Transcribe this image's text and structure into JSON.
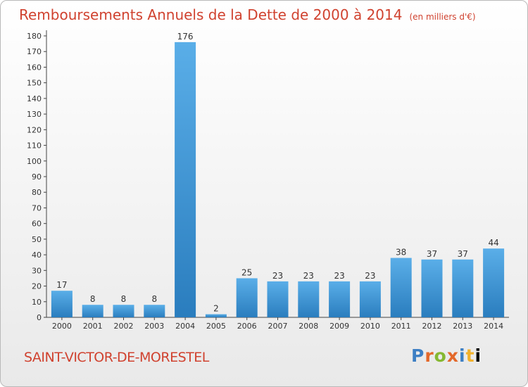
{
  "chart_data": {
    "type": "bar",
    "title": "Remboursements Annuels de la Dette de 2000 à 2014",
    "unit_label": "(en milliers d'€)",
    "categories": [
      "2000",
      "2001",
      "2002",
      "2003",
      "2004",
      "2005",
      "2006",
      "2007",
      "2008",
      "2009",
      "2010",
      "2011",
      "2012",
      "2013",
      "2014"
    ],
    "values": [
      17,
      8,
      8,
      8,
      176,
      2,
      25,
      23,
      23,
      23,
      23,
      38,
      37,
      37,
      44
    ],
    "data_labels": [
      "17",
      "8",
      "8",
      "8",
      "176",
      "2",
      "25",
      "23",
      "23",
      "23",
      "23",
      "38",
      "37",
      "37",
      "44"
    ],
    "y_ticks": [
      "0",
      "10",
      "20",
      "30",
      "40",
      "50",
      "60",
      "70",
      "80",
      "90",
      "100",
      "110",
      "120",
      "130",
      "140",
      "150",
      "160",
      "170",
      "180"
    ],
    "ylim": [
      0,
      180
    ],
    "xlabel": "",
    "ylabel": "",
    "grid": false,
    "bar_color_top": "#5aaee8",
    "bar_color_bottom": "#2a7dbe"
  },
  "footer": {
    "commune": "SAINT-VICTOR-DE-MORESTEL",
    "logo_text": "Proxiti"
  }
}
